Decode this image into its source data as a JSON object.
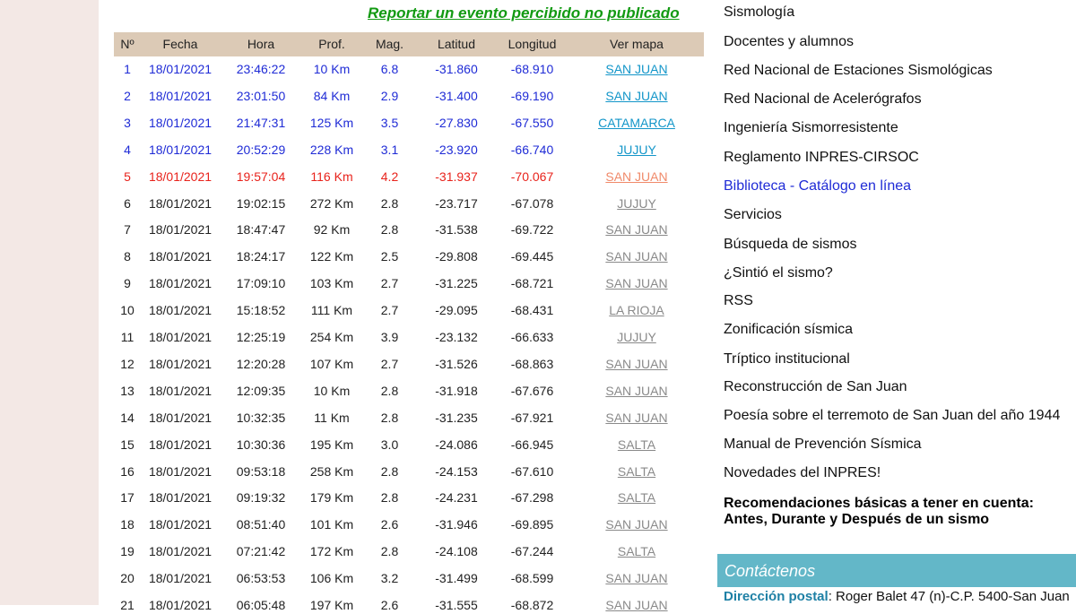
{
  "report_link": "Reportar un evento percibido no publicado",
  "table": {
    "headers": [
      "Nº",
      "Fecha",
      "Hora",
      "Prof.",
      "Mag.",
      "Latitud",
      "Longitud",
      "Ver mapa"
    ],
    "rows": [
      [
        "1",
        "18/01/2021",
        "23:46:22",
        "10 Km",
        "6.8",
        "-31.860",
        "-68.910",
        "SAN JUAN"
      ],
      [
        "2",
        "18/01/2021",
        "23:01:50",
        "84 Km",
        "2.9",
        "-31.400",
        "-69.190",
        "SAN JUAN"
      ],
      [
        "3",
        "18/01/2021",
        "21:47:31",
        "125 Km",
        "3.5",
        "-27.830",
        "-67.550",
        "CATAMARCA"
      ],
      [
        "4",
        "18/01/2021",
        "20:52:29",
        "228 Km",
        "3.1",
        "-23.920",
        "-66.740",
        "JUJUY"
      ],
      [
        "5",
        "18/01/2021",
        "19:57:04",
        "116 Km",
        "4.2",
        "-31.937",
        "-70.067",
        "SAN JUAN"
      ],
      [
        "6",
        "18/01/2021",
        "19:02:15",
        "272 Km",
        "2.8",
        "-23.717",
        "-67.078",
        "JUJUY"
      ],
      [
        "7",
        "18/01/2021",
        "18:47:47",
        "92 Km",
        "2.8",
        "-31.538",
        "-69.722",
        "SAN JUAN"
      ],
      [
        "8",
        "18/01/2021",
        "18:24:17",
        "122 Km",
        "2.5",
        "-29.808",
        "-69.445",
        "SAN JUAN"
      ],
      [
        "9",
        "18/01/2021",
        "17:09:10",
        "103 Km",
        "2.7",
        "-31.225",
        "-68.721",
        "SAN JUAN"
      ],
      [
        "10",
        "18/01/2021",
        "15:18:52",
        "111 Km",
        "2.7",
        "-29.095",
        "-68.431",
        "LA RIOJA"
      ],
      [
        "11",
        "18/01/2021",
        "12:25:19",
        "254 Km",
        "3.9",
        "-23.132",
        "-66.633",
        "JUJUY"
      ],
      [
        "12",
        "18/01/2021",
        "12:20:28",
        "107 Km",
        "2.7",
        "-31.526",
        "-68.863",
        "SAN JUAN"
      ],
      [
        "13",
        "18/01/2021",
        "12:09:35",
        "10 Km",
        "2.8",
        "-31.918",
        "-67.676",
        "SAN JUAN"
      ],
      [
        "14",
        "18/01/2021",
        "10:32:35",
        "11 Km",
        "2.8",
        "-31.235",
        "-67.921",
        "SAN JUAN"
      ],
      [
        "15",
        "18/01/2021",
        "10:30:36",
        "195 Km",
        "3.0",
        "-24.086",
        "-66.945",
        "SALTA"
      ],
      [
        "16",
        "18/01/2021",
        "09:53:18",
        "258 Km",
        "2.8",
        "-24.153",
        "-67.610",
        "SALTA"
      ],
      [
        "17",
        "18/01/2021",
        "09:19:32",
        "179 Km",
        "2.8",
        "-24.231",
        "-67.298",
        "SALTA"
      ],
      [
        "18",
        "18/01/2021",
        "08:51:40",
        "101 Km",
        "2.6",
        "-31.946",
        "-69.895",
        "SAN JUAN"
      ],
      [
        "19",
        "18/01/2021",
        "07:21:42",
        "172 Km",
        "2.8",
        "-24.108",
        "-67.244",
        "SALTA"
      ],
      [
        "20",
        "18/01/2021",
        "06:53:53",
        "106 Km",
        "3.2",
        "-31.499",
        "-68.599",
        "SAN JUAN"
      ],
      [
        "21",
        "18/01/2021",
        "06:05:48",
        "197 Km",
        "2.6",
        "-31.555",
        "-68.872",
        "SAN JUAN"
      ]
    ]
  },
  "sidebar": {
    "links": [
      "Sismología",
      "Docentes y alumnos",
      "Red Nacional de Estaciones Sismológicas",
      "Red Nacional de Acelerógrafos",
      "Ingeniería Sismorresistente",
      "Reglamento INPRES-CIRSOC",
      "Biblioteca - Catálogo en línea",
      "Servicios",
      "Búsqueda de sismos",
      "¿Sintió el sismo?",
      "RSS",
      "Zonificación sísmica",
      "Tríptico institucional",
      "Reconstrucción de San Juan",
      "Poesía sobre el terremoto de San Juan del año 1944",
      "Manual de Prevención Sísmica",
      "Novedades del INPRES!"
    ],
    "recommendations": [
      "Recomendaciones básicas a tener en cuenta:",
      "Antes, Durante y Después de un sismo"
    ],
    "contact": {
      "title": "Contáctenos",
      "address_label": "Dirección postal",
      "address": ": Roger Balet 47 (n)-C.P. 5400-San Juan"
    }
  }
}
